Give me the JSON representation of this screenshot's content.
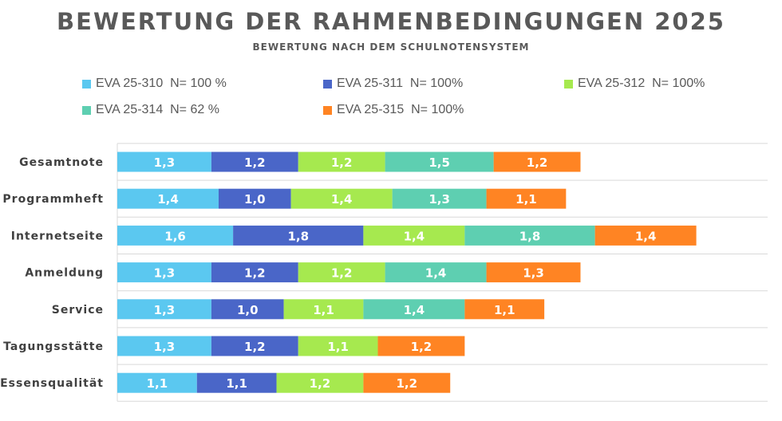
{
  "chart_data": {
    "type": "bar",
    "orientation": "horizontal",
    "stacked": true,
    "title": "BEWERTUNG DER RAHMENBEDINGUNGEN 2025",
    "subtitle": "BEWERTUNG NACH DEM SCHULNOTENSYSTEM",
    "categories": [
      "Gesamtnote",
      "Programmheft",
      "Internetseite",
      "Anmeldung",
      "Service",
      "Tagungsstätte",
      "Essensqualität"
    ],
    "series": [
      {
        "name": "EVA 25-310  N= 100 %",
        "color": "#5BC8F0",
        "values": [
          1.3,
          1.4,
          1.6,
          1.3,
          1.3,
          1.3,
          1.1
        ],
        "labels": [
          "1,3",
          "1,4",
          "1,6",
          "1,3",
          "1,3",
          "1,3",
          "1,1"
        ]
      },
      {
        "name": "EVA 25-311  N= 100%",
        "color": "#4A66C8",
        "values": [
          1.2,
          1.0,
          1.8,
          1.2,
          1.0,
          1.2,
          1.1
        ],
        "labels": [
          "1,2",
          "1,0",
          "1,8",
          "1,2",
          "1,0",
          "1,2",
          "1,1"
        ]
      },
      {
        "name": "EVA 25-312  N= 100%",
        "color": "#A6E94F",
        "values": [
          1.2,
          1.4,
          1.4,
          1.2,
          1.1,
          1.1,
          1.2
        ],
        "labels": [
          "1,2",
          "1,4",
          "1,4",
          "1,2",
          "1,1",
          "1,1",
          "1,2"
        ]
      },
      {
        "name": "EVA 25-314  N= 62 %",
        "color": "#5ECFB1",
        "values": [
          1.5,
          1.3,
          1.8,
          1.4,
          1.4,
          null,
          null
        ],
        "labels": [
          "1,5",
          "1,3",
          "1,8",
          "1,4",
          "1,4",
          "",
          ""
        ]
      },
      {
        "name": "EVA 25-315  N= 100%",
        "color": "#FF8423",
        "values": [
          1.2,
          1.1,
          1.4,
          1.3,
          1.1,
          1.2,
          1.2
        ],
        "labels": [
          "1,2",
          "1,1",
          "1,4",
          "1,3",
          "1,1",
          "1,2",
          "1,2"
        ]
      }
    ],
    "legend_position": "top",
    "grid": "horizontal",
    "xlim": [
      0,
      9.0
    ]
  }
}
